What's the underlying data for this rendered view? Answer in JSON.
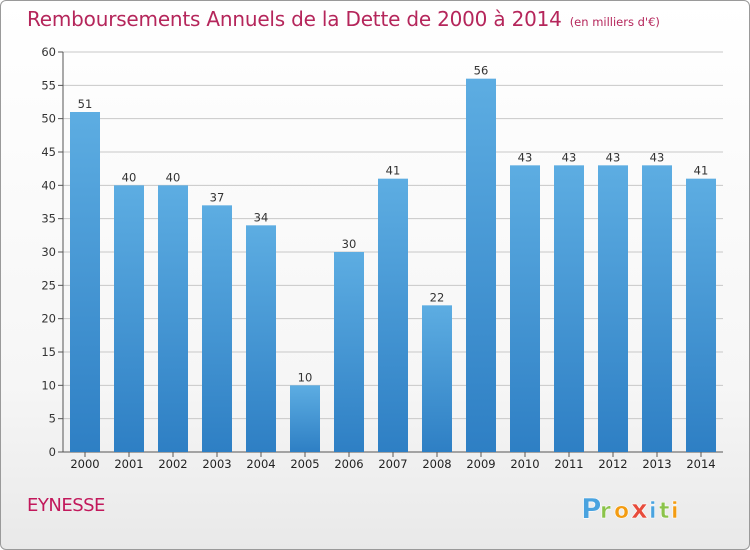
{
  "title": "Remboursements Annuels de la Dette de 2000 à 2014",
  "unit": "(en milliers d'€)",
  "commune": "EYNESSE",
  "logo": {
    "letters": [
      "P",
      "r",
      "o",
      "x",
      "i",
      "t",
      "i"
    ],
    "colors": [
      "#4aa3df",
      "#8bc34a",
      "#f39c12",
      "#e74c3c",
      "#4aa3df",
      "#8bc34a",
      "#f39c12"
    ]
  },
  "colors": {
    "bar_light": "#5dade2",
    "bar_dark": "#2e7fc4",
    "title": "#b5265b",
    "grid": "#c8c8c8"
  },
  "chart_data": {
    "type": "bar",
    "categories": [
      "2000",
      "2001",
      "2002",
      "2003",
      "2004",
      "2005",
      "2006",
      "2007",
      "2008",
      "2009",
      "2010",
      "2011",
      "2012",
      "2013",
      "2014"
    ],
    "values": [
      51,
      40,
      40,
      37,
      34,
      10,
      30,
      41,
      22,
      56,
      43,
      43,
      43,
      43,
      41
    ],
    "title": "Remboursements Annuels de la Dette de 2000 à 2014",
    "xlabel": "",
    "ylabel": "",
    "ylim": [
      0,
      60
    ],
    "yticks": [
      0,
      5,
      10,
      15,
      20,
      25,
      30,
      35,
      40,
      45,
      50,
      55,
      60
    ],
    "grid": true,
    "data_labels": true
  }
}
